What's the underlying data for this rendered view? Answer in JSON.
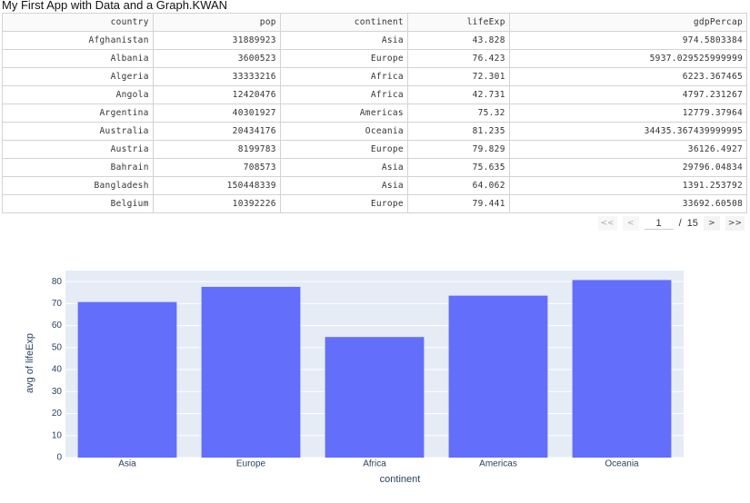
{
  "title": "My First App with Data and a Graph.KWAN",
  "table": {
    "columns": [
      "country",
      "pop",
      "continent",
      "lifeExp",
      "gdpPercap"
    ],
    "rows": [
      [
        "Afghanistan",
        "31889923",
        "Asia",
        "43.828",
        "974.5803384"
      ],
      [
        "Albania",
        "3600523",
        "Europe",
        "76.423",
        "5937.029525999999"
      ],
      [
        "Algeria",
        "33333216",
        "Africa",
        "72.301",
        "6223.367465"
      ],
      [
        "Angola",
        "12420476",
        "Africa",
        "42.731",
        "4797.231267"
      ],
      [
        "Argentina",
        "40301927",
        "Americas",
        "75.32",
        "12779.37964"
      ],
      [
        "Australia",
        "20434176",
        "Oceania",
        "81.235",
        "34435.367439999995"
      ],
      [
        "Austria",
        "8199783",
        "Europe",
        "79.829",
        "36126.4927"
      ],
      [
        "Bahrain",
        "708573",
        "Asia",
        "75.635",
        "29796.04834"
      ],
      [
        "Bangladesh",
        "150448339",
        "Asia",
        "64.062",
        "1391.253792"
      ],
      [
        "Belgium",
        "10392226",
        "Europe",
        "79.441",
        "33692.60508"
      ]
    ]
  },
  "pagination": {
    "first": "<<",
    "prev": "<",
    "current": "1",
    "separator": "/",
    "total": "15",
    "next": ">",
    "last": ">>"
  },
  "chart_data": {
    "type": "bar",
    "x_label": "continent",
    "y_label": "avg of lifeExp",
    "categories": [
      "Asia",
      "Europe",
      "Africa",
      "Americas",
      "Oceania"
    ],
    "values": [
      70.7,
      77.6,
      54.8,
      73.6,
      80.7
    ],
    "color": "#636efa",
    "background": "#e5ecf6",
    "grid": true,
    "ylim": [
      0,
      85
    ],
    "yticks": [
      0,
      10,
      20,
      30,
      40,
      50,
      60,
      70,
      80
    ]
  }
}
